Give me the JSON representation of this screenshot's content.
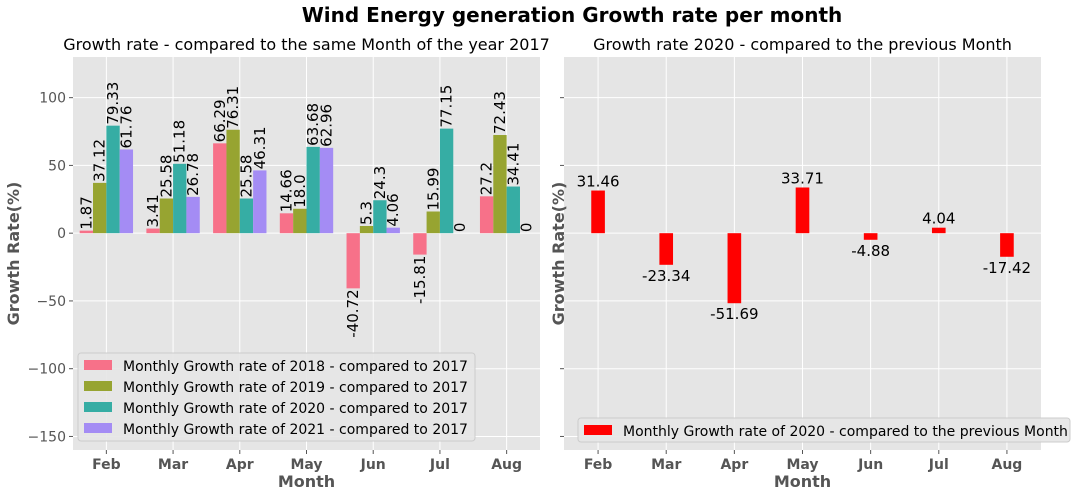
{
  "title": "Wind Energy generation Growth rate per month",
  "chart_data": [
    {
      "type": "bar",
      "title": "Growth rate -  compared to the same Month of the year 2017",
      "xlabel": "Month",
      "ylabel": "Growth Rate(%)",
      "ylim": [
        -160,
        130
      ],
      "yticks": [
        -150,
        -100,
        -50,
        0,
        50,
        100
      ],
      "grid": true,
      "legend_position": "lower-left",
      "categories": [
        "Feb",
        "Mar",
        "Apr",
        "May",
        "Jun",
        "Jul",
        "Aug"
      ],
      "series": [
        {
          "name": "Monthly Growth rate of 2018 - compared to 2017",
          "color": "#f77189",
          "values": [
            1.87,
            3.41,
            66.29,
            14.66,
            -40.72,
            -15.81,
            27.2
          ],
          "labels": [
            "1.87",
            "3.41",
            "66.29",
            "14.66",
            "-40.72",
            "-15.81",
            "27.2"
          ]
        },
        {
          "name": "Monthly Growth rate of 2019 - compared to 2017",
          "color": "#97a431",
          "values": [
            37.12,
            25.58,
            76.31,
            18.0,
            5.3,
            15.99,
            72.43
          ],
          "labels": [
            "37.12",
            "25.58",
            "76.31",
            "18.0",
            "5.3",
            "15.99",
            "72.43"
          ]
        },
        {
          "name": "Monthly Growth rate of 2020 - compared to 2017",
          "color": "#36ada4",
          "values": [
            79.33,
            51.18,
            25.58,
            63.68,
            24.3,
            77.15,
            34.41
          ],
          "labels": [
            "79.33",
            "51.18",
            "25.58",
            "63.68",
            "24.3",
            "77.15",
            "34.41"
          ]
        },
        {
          "name": "Monthly Growth rate of 2021 - compared to 2017",
          "color": "#a48cf4",
          "values": [
            61.76,
            26.78,
            46.31,
            62.96,
            4.06,
            0,
            0
          ],
          "labels": [
            "61.76",
            "26.78",
            "46.31",
            "62.96",
            "4.06",
            "0",
            "0"
          ]
        }
      ]
    },
    {
      "type": "bar",
      "title": "Growth rate 2020 - compared to the previous Month",
      "xlabel": "Month",
      "ylabel": "Growth Rate(%)",
      "ylim": [
        -160,
        130
      ],
      "yticks": [
        -150,
        -100,
        -50,
        0,
        50,
        100
      ],
      "grid": true,
      "legend_position": "lower-left",
      "categories": [
        "Feb",
        "Mar",
        "Apr",
        "May",
        "Jun",
        "Jul",
        "Aug"
      ],
      "series": [
        {
          "name": "Monthly Growth rate of 2020 - compared to the previous Month",
          "color": "#ff0000",
          "values": [
            31.46,
            -23.34,
            -51.69,
            33.71,
            -4.88,
            4.04,
            -17.42
          ],
          "labels": [
            "31.46",
            "-23.34",
            "-51.69",
            "33.71",
            "-4.88",
            "4.04",
            "-17.42"
          ]
        }
      ]
    }
  ]
}
